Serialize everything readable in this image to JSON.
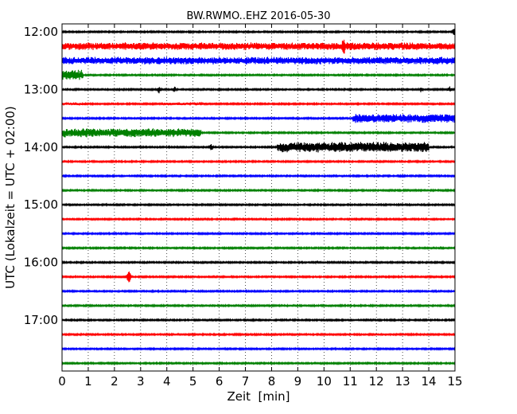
{
  "chart_data": {
    "type": "line",
    "title": "BW.RWMO..EHZ 2016-05-30",
    "xlabel": "Zeit  [min]",
    "ylabel": "UTC (Lokalzeit = UTC + 02:00)",
    "xlim": [
      0,
      15
    ],
    "x_ticks": [
      0,
      1,
      2,
      3,
      4,
      5,
      6,
      7,
      8,
      9,
      10,
      11,
      12,
      13,
      14,
      15
    ],
    "y_tick_labels": [
      "12:00",
      "13:00",
      "14:00",
      "15:00",
      "16:00",
      "17:00"
    ],
    "y_tick_every_n_traces": 4,
    "grid": "dotted vertical lines at each minute",
    "trace_colors": [
      "#000000",
      "#ff0000",
      "#0000ff",
      "#008000"
    ],
    "traces": [
      {
        "start": "12:00",
        "bursts": [
          {
            "x": 14.98,
            "h": 6
          }
        ]
      },
      {
        "start": "12:15",
        "bursts": [
          {
            "x0": 0,
            "x1": 15,
            "h": 5
          },
          {
            "x": 10.75,
            "h": 13
          }
        ]
      },
      {
        "start": "12:30",
        "bursts": [
          {
            "x0": 0,
            "x1": 15,
            "h": 5
          }
        ]
      },
      {
        "start": "12:45",
        "bursts": [
          {
            "x0": 0,
            "x1": 0.8,
            "h": 7
          }
        ]
      },
      {
        "start": "13:00",
        "bursts": [
          {
            "x": 3.7,
            "h": 5
          },
          {
            "x": 4.3,
            "h": 4
          },
          {
            "x": 13.7,
            "h": 4
          },
          {
            "x": 14.8,
            "h": 4
          }
        ]
      },
      {
        "start": "13:15",
        "bursts": [
          {
            "x0": 0,
            "x1": 1.0,
            "h": 2
          },
          {
            "x0": 3.8,
            "x1": 5.5,
            "h": 2
          }
        ]
      },
      {
        "start": "13:30",
        "bursts": [
          {
            "x0": 11.1,
            "x1": 15,
            "h": 6
          }
        ]
      },
      {
        "start": "13:45",
        "bursts": [
          {
            "x0": 0,
            "x1": 5.3,
            "h": 6
          }
        ]
      },
      {
        "start": "14:00",
        "bursts": [
          {
            "x": 5.7,
            "h": 5
          },
          {
            "x0": 8.2,
            "x1": 14.0,
            "h": 7
          }
        ]
      },
      {
        "start": "14:15",
        "bursts": []
      },
      {
        "start": "14:30",
        "bursts": []
      },
      {
        "start": "14:45",
        "bursts": []
      },
      {
        "start": "15:00",
        "bursts": []
      },
      {
        "start": "15:15",
        "bursts": []
      },
      {
        "start": "15:30",
        "bursts": []
      },
      {
        "start": "15:45",
        "bursts": []
      },
      {
        "start": "16:00",
        "bursts": [
          {
            "x": 9.7,
            "h": 2
          }
        ]
      },
      {
        "start": "16:15",
        "bursts": [
          {
            "x": 2.55,
            "h": 9
          }
        ]
      },
      {
        "start": "16:30",
        "bursts": []
      },
      {
        "start": "16:45",
        "bursts": [
          {
            "x": 6.3,
            "h": 2
          }
        ]
      },
      {
        "start": "17:00",
        "bursts": []
      },
      {
        "start": "17:15",
        "bursts": []
      },
      {
        "start": "17:30",
        "bursts": []
      },
      {
        "start": "17:45",
        "bursts": []
      }
    ]
  }
}
